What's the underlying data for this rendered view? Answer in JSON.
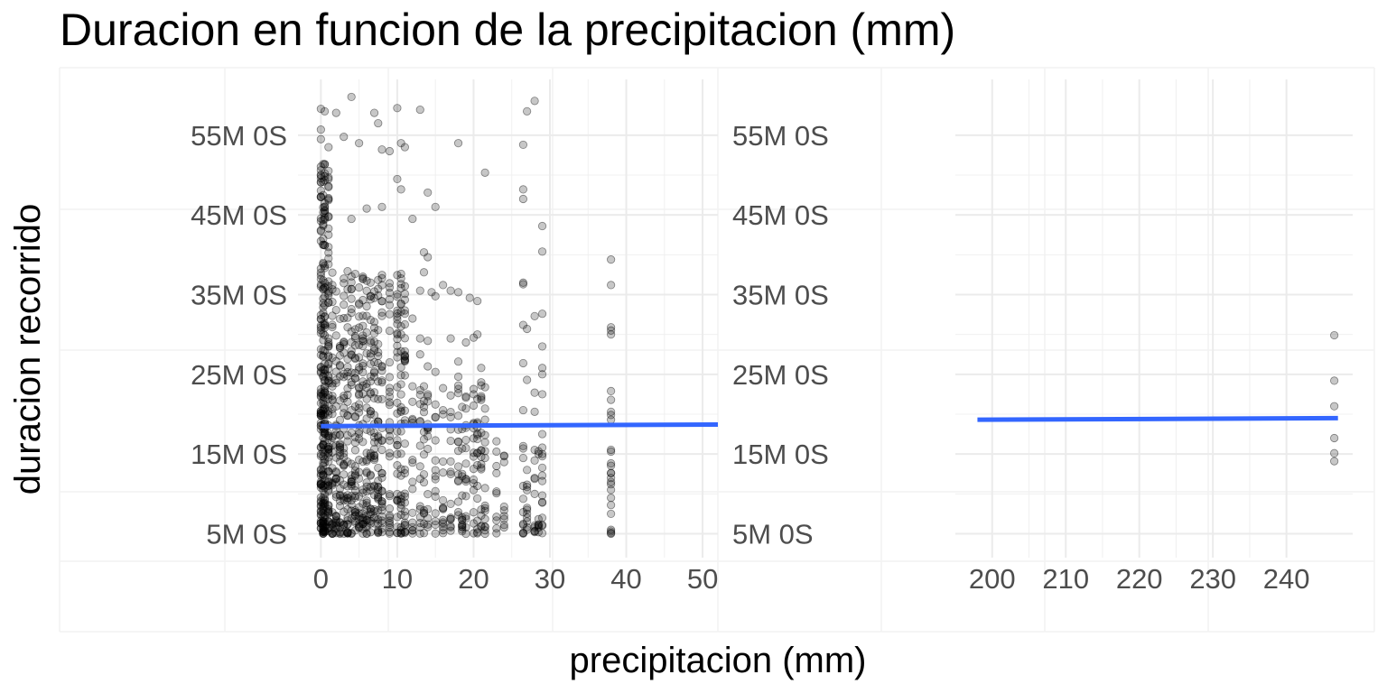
{
  "chart_data": {
    "type": "scatter",
    "title": "Duracion en funcion de la precipitacion (mm)",
    "xlabel": "precipitacion (mm)",
    "ylabel": "duracion recorrido",
    "y_unit": "minutes",
    "ylim": [
      2,
      62
    ],
    "grid": true,
    "panels": [
      {
        "xlim": [
          -3,
          52
        ],
        "x_ticks": [
          0,
          10,
          20,
          30,
          40,
          50
        ],
        "x_tick_labels": [
          "0",
          "10",
          "20",
          "30",
          "40",
          "50"
        ],
        "y_ticks": [
          5,
          15,
          25,
          35,
          45,
          55
        ],
        "y_tick_labels": [
          "5M 0S",
          "15M 0S",
          "25M 0S",
          "35M 0S",
          "45M 0S",
          "55M 0S"
        ],
        "trend_line": [
          [
            0,
            18.5
          ],
          [
            52,
            18.7
          ]
        ],
        "x_columns": [
          0,
          0.3,
          0.5,
          1,
          1.5,
          2,
          2.5,
          3,
          3.5,
          4,
          4.5,
          5,
          5.5,
          6,
          6.5,
          7,
          7.5,
          8,
          9,
          10,
          10.5,
          11,
          12,
          13,
          13.5,
          14,
          15,
          16,
          17,
          18,
          18.5,
          19,
          20,
          20.5,
          21,
          21.5,
          23,
          24,
          26.5,
          27,
          28,
          28.5,
          29,
          38
        ],
        "points": [
          [
            0,
            58.3
          ],
          [
            0,
            55.7
          ],
          [
            0,
            54.5
          ],
          [
            0,
            50.6
          ],
          [
            0,
            49.6
          ],
          [
            0,
            47.3
          ],
          [
            0.5,
            58.0
          ],
          [
            1,
            53.5
          ],
          [
            2,
            57.8
          ],
          [
            4,
            59.8
          ],
          [
            3,
            54.8
          ],
          [
            5,
            54.0
          ],
          [
            7,
            57.8
          ],
          [
            7.5,
            56.5
          ],
          [
            8,
            53.2
          ],
          [
            9,
            53.0
          ],
          [
            10,
            58.4
          ],
          [
            10.5,
            54.0
          ],
          [
            11,
            53.5
          ],
          [
            13,
            58.2
          ],
          [
            18,
            54.0
          ],
          [
            21.5,
            50.3
          ],
          [
            27,
            58.0
          ],
          [
            28,
            59.3
          ],
          [
            26.5,
            53.8
          ],
          [
            10,
            49.5
          ],
          [
            10.5,
            48.2
          ],
          [
            12,
            44.5
          ],
          [
            14,
            47.8
          ],
          [
            15,
            46.0
          ],
          [
            8,
            46.0
          ],
          [
            6,
            45.8
          ],
          [
            4,
            44.5
          ],
          [
            26.5,
            48.2
          ],
          [
            26.5,
            47.0
          ],
          [
            29,
            43.6
          ],
          [
            29,
            40.4
          ],
          [
            38,
            39.4
          ],
          [
            38,
            36.2
          ],
          [
            26.5,
            36.3
          ],
          [
            26.5,
            36.5
          ],
          [
            28,
            32.3
          ],
          [
            29,
            32.6
          ],
          [
            26.5,
            31.2
          ],
          [
            27,
            30.7
          ],
          [
            29,
            28.5
          ],
          [
            26.5,
            26.4
          ],
          [
            29,
            25.8
          ],
          [
            29,
            25.0
          ],
          [
            27,
            24.3
          ],
          [
            28,
            22.7
          ],
          [
            29,
            22.5
          ],
          [
            26.5,
            20.5
          ],
          [
            28,
            20.3
          ],
          [
            38,
            30.9
          ],
          [
            38,
            30.5
          ],
          [
            38,
            30.0
          ],
          [
            38,
            22.9
          ],
          [
            38,
            21.8
          ],
          [
            38,
            20.3
          ],
          [
            38,
            19.9
          ],
          [
            38,
            19.3
          ],
          [
            38,
            15.3
          ],
          [
            38,
            12.6
          ],
          [
            38,
            12.0
          ],
          [
            38,
            11.5
          ],
          [
            38,
            10.5
          ],
          [
            38,
            9.5
          ],
          [
            38,
            8.6
          ],
          [
            38,
            7.5
          ],
          [
            38,
            5.1
          ],
          [
            29,
            17.5
          ],
          [
            29,
            15.0
          ],
          [
            26.5,
            16.0
          ],
          [
            26.5,
            14.5
          ],
          [
            27,
            13.0
          ],
          [
            28,
            12.0
          ],
          [
            26.5,
            11.0
          ],
          [
            29,
            9.8
          ],
          [
            29,
            8.9
          ],
          [
            27,
            8.0
          ],
          [
            29,
            7.0
          ],
          [
            27,
            5.8
          ],
          [
            28,
            5.3
          ],
          [
            29,
            6.0
          ],
          [
            23,
            16.6
          ],
          [
            23,
            15.3
          ],
          [
            24,
            14.8
          ],
          [
            21.5,
            8.2
          ],
          [
            21.5,
            5.0
          ],
          [
            20.5,
            13.6
          ],
          [
            20.5,
            11.0
          ],
          [
            20,
            6.3
          ],
          [
            19,
            7.2
          ],
          [
            18.5,
            9.8
          ],
          [
            17,
            5.8
          ],
          [
            18,
            26.6
          ],
          [
            18,
            24.7
          ],
          [
            17,
            29.5
          ],
          [
            19,
            29.0
          ],
          [
            20,
            29.6
          ],
          [
            20.5,
            30.0
          ],
          [
            16,
            36.2
          ],
          [
            17,
            35.5
          ],
          [
            18,
            35.3
          ],
          [
            19.5,
            34.6
          ],
          [
            20.5,
            34.2
          ],
          [
            14,
            39.7
          ],
          [
            13.5,
            40.3
          ],
          [
            13.5,
            37.8
          ],
          [
            13,
            35.5
          ],
          [
            14.5,
            35.3
          ],
          [
            15,
            34.8
          ],
          [
            12,
            32.0
          ],
          [
            13,
            29.5
          ],
          [
            14,
            29.2
          ],
          [
            13,
            27.5
          ],
          [
            14,
            26.0
          ],
          [
            15,
            25.3
          ],
          [
            21,
            25.8
          ],
          [
            21,
            24.0
          ],
          [
            20,
            22.5
          ],
          [
            21,
            21.8
          ],
          [
            19,
            20.7
          ],
          [
            18,
            19.8
          ],
          [
            16,
            20.5
          ],
          [
            14,
            22.5
          ],
          [
            12,
            23.5
          ],
          [
            10.5,
            30.0
          ],
          [
            11,
            27.4
          ]
        ]
      },
      {
        "xlim": [
          195,
          249
        ],
        "x_ticks": [
          200,
          210,
          220,
          230,
          240
        ],
        "x_tick_labels": [
          "200",
          "210",
          "220",
          "230",
          "240"
        ],
        "y_ticks": [
          5,
          15,
          25,
          35,
          45,
          55
        ],
        "y_tick_labels": [
          "5M 0S",
          "15M 0S",
          "25M 0S",
          "35M 0S",
          "45M 0S",
          "55M 0S"
        ],
        "trend_line": [
          [
            198,
            19.3
          ],
          [
            247,
            19.5
          ]
        ],
        "points": [
          [
            246.5,
            29.9
          ],
          [
            246.5,
            24.2
          ],
          [
            246.5,
            21.0
          ],
          [
            246.5,
            17.0
          ],
          [
            246.5,
            15.1
          ],
          [
            246.5,
            14.1
          ]
        ]
      }
    ]
  }
}
